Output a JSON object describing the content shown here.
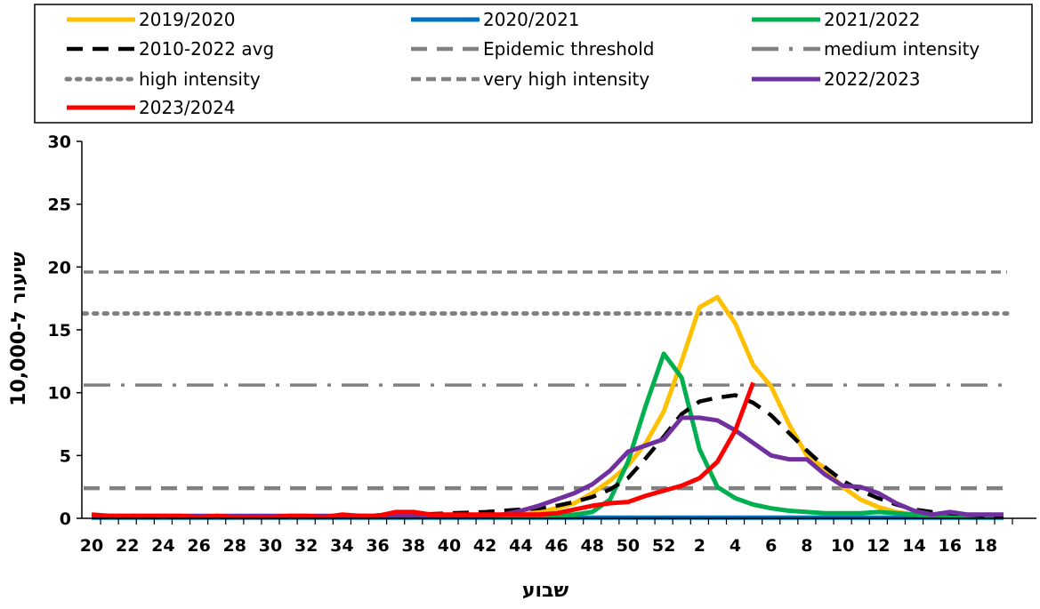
{
  "chart_data": {
    "type": "line",
    "xlabel": "שבוע",
    "ylabel": "שיעור ל-10,000",
    "ylim": [
      0,
      30
    ],
    "yticks": [
      0,
      5,
      10,
      15,
      20,
      25,
      30
    ],
    "x_tick_labels": [
      "20",
      "22",
      "24",
      "26",
      "28",
      "30",
      "32",
      "34",
      "36",
      "38",
      "40",
      "42",
      "44",
      "46",
      "48",
      "50",
      "52",
      "2",
      "4",
      "6",
      "8",
      "10",
      "12",
      "14",
      "16",
      "18"
    ],
    "weeks": [
      20,
      21,
      22,
      23,
      24,
      25,
      26,
      27,
      28,
      29,
      30,
      31,
      32,
      33,
      34,
      35,
      36,
      37,
      38,
      39,
      40,
      41,
      42,
      43,
      44,
      45,
      46,
      47,
      48,
      49,
      50,
      51,
      52,
      1,
      2,
      3,
      4,
      5,
      6,
      7,
      8,
      9,
      10,
      11,
      12,
      13,
      14,
      15,
      16,
      17,
      18,
      19
    ],
    "grid": false,
    "legend_position": "top",
    "thresholds": [
      {
        "name": "Epidemic threshold",
        "value": 2.4,
        "color": "#808080",
        "style": "dash"
      },
      {
        "name": "medium intensity",
        "value": 10.6,
        "color": "#808080",
        "style": "longdashdot"
      },
      {
        "name": "high intensity",
        "value": 16.3,
        "color": "#808080",
        "style": "dot"
      },
      {
        "name": "very high intensity",
        "value": 19.6,
        "color": "#808080",
        "style": "shortdash"
      }
    ],
    "series": [
      {
        "name": "2019/2020",
        "color": "#FFC000",
        "style": "solid",
        "values": [
          0.2,
          0.15,
          0.1,
          0.1,
          0.1,
          0.1,
          0.1,
          0.1,
          0.1,
          0.1,
          0.1,
          0.1,
          0.1,
          0.1,
          0.1,
          0.1,
          0.1,
          0.1,
          0.1,
          0.1,
          0.1,
          0.1,
          0.15,
          0.2,
          0.3,
          0.5,
          0.8,
          1.2,
          2.0,
          3.0,
          4.2,
          6.0,
          8.5,
          12.5,
          16.8,
          17.6,
          15.5,
          12.2,
          10.5,
          7.5,
          5.0,
          4.0,
          2.5,
          1.5,
          0.9,
          0.5,
          0.3,
          0.2,
          0.1,
          0.1,
          0.1,
          0.1
        ]
      },
      {
        "name": "2020/2021",
        "color": "#0070C0",
        "style": "solid",
        "values": [
          0.05,
          0.05,
          0.05,
          0.05,
          0.05,
          0.05,
          0.05,
          0.05,
          0.05,
          0.05,
          0.05,
          0.05,
          0.05,
          0.05,
          0.05,
          0.05,
          0.05,
          0.05,
          0.05,
          0.05,
          0.05,
          0.05,
          0.05,
          0.05,
          0.05,
          0.05,
          0.05,
          0.05,
          0.05,
          0.05,
          0.05,
          0.05,
          0.05,
          0.05,
          0.05,
          0.05,
          0.05,
          0.05,
          0.05,
          0.05,
          0.05,
          0.05,
          0.05,
          0.05,
          0.05,
          0.05,
          0.05,
          0.05,
          0.05,
          0.05,
          0.05,
          0.05
        ]
      },
      {
        "name": "2021/2022",
        "color": "#00B050",
        "style": "solid",
        "values": [
          0.1,
          0.1,
          0.1,
          0.1,
          0.1,
          0.1,
          0.1,
          0.1,
          0.1,
          0.1,
          0.1,
          0.1,
          0.1,
          0.1,
          0.1,
          0.1,
          0.1,
          0.1,
          0.1,
          0.1,
          0.1,
          0.1,
          0.1,
          0.1,
          0.1,
          0.1,
          0.2,
          0.3,
          0.5,
          1.5,
          4.5,
          9.0,
          13.1,
          11.2,
          5.5,
          2.5,
          1.6,
          1.1,
          0.8,
          0.6,
          0.5,
          0.4,
          0.4,
          0.4,
          0.5,
          0.4,
          0.3,
          0.2,
          0.1,
          0.1,
          0.1,
          0.1
        ]
      },
      {
        "name": "2010-2022 avg",
        "color": "#000000",
        "style": "dash",
        "values": [
          0.1,
          0.1,
          0.1,
          0.1,
          0.1,
          0.1,
          0.1,
          0.1,
          0.1,
          0.1,
          0.1,
          0.1,
          0.15,
          0.15,
          0.2,
          0.2,
          0.25,
          0.3,
          0.3,
          0.35,
          0.4,
          0.45,
          0.5,
          0.6,
          0.7,
          0.8,
          1.0,
          1.3,
          1.7,
          2.3,
          3.2,
          4.8,
          6.5,
          8.3,
          9.3,
          9.6,
          9.8,
          9.2,
          8.2,
          6.8,
          5.4,
          4.1,
          3.0,
          2.2,
          1.6,
          1.1,
          0.7,
          0.5,
          0.4,
          0.3,
          0.2,
          0.2
        ]
      },
      {
        "name": "2022/2023",
        "color": "#7030A0",
        "style": "solid",
        "values": [
          0.2,
          0.2,
          0.2,
          0.2,
          0.2,
          0.2,
          0.2,
          0.2,
          0.2,
          0.2,
          0.2,
          0.2,
          0.2,
          0.2,
          0.2,
          0.2,
          0.2,
          0.2,
          0.2,
          0.2,
          0.2,
          0.2,
          0.2,
          0.3,
          0.6,
          1.0,
          1.5,
          2.0,
          2.7,
          3.8,
          5.3,
          5.8,
          6.3,
          8.0,
          8.0,
          7.8,
          7.0,
          6.0,
          5.0,
          4.7,
          4.7,
          3.5,
          2.6,
          2.5,
          2.0,
          1.2,
          0.6,
          0.3,
          0.5,
          0.3,
          0.3,
          0.3
        ]
      },
      {
        "name": "2023/2024",
        "color": "#FF0000",
        "style": "solid",
        "values": [
          0.3,
          0.2,
          0.2,
          0.2,
          0.2,
          0.2,
          0.1,
          0.2,
          0.1,
          0.1,
          0.1,
          0.2,
          0.2,
          0.1,
          0.3,
          0.2,
          0.2,
          0.5,
          0.5,
          0.3,
          0.3,
          0.3,
          0.3,
          0.3,
          0.3,
          0.3,
          0.4,
          0.7,
          1.0,
          1.2,
          1.3,
          1.8,
          2.2,
          2.6,
          3.2,
          4.5,
          7.0,
          10.8
        ]
      }
    ]
  }
}
